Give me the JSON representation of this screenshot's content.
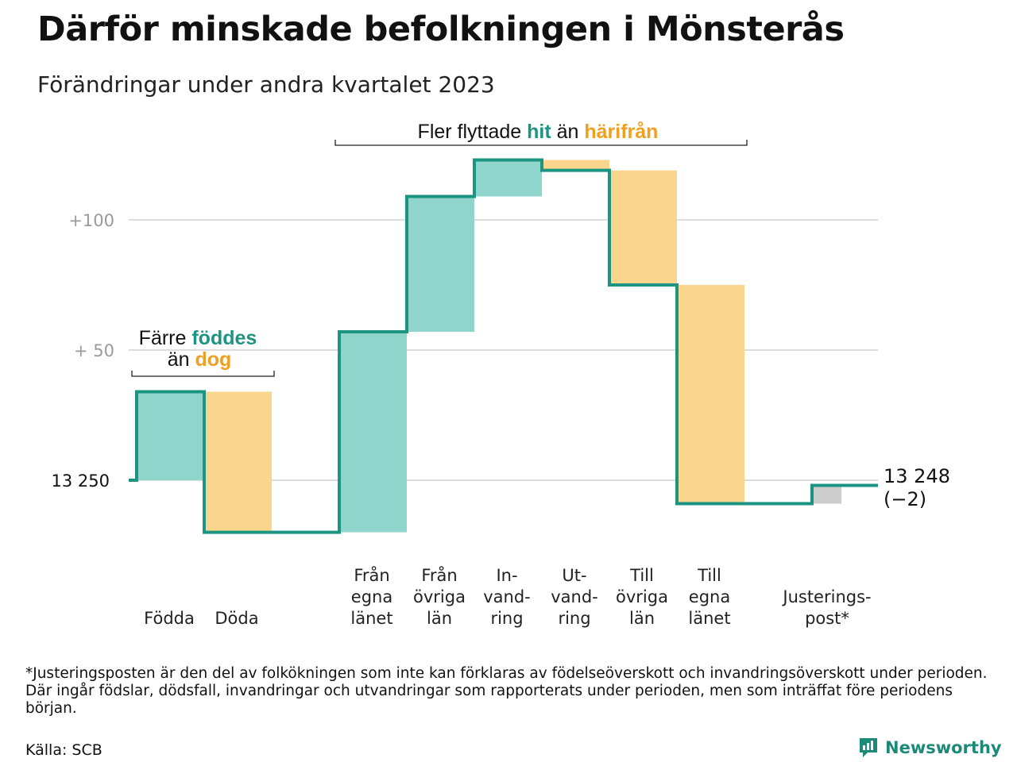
{
  "header": {
    "title": "Därför minskade befolkningen i Mönsterås",
    "subtitle": "Förändringar under andra kvartalet 2023"
  },
  "colors": {
    "increase": "#8fd5cb",
    "decrease": "#fad58d",
    "adjustment": "#cccccc",
    "line": "#1b9482",
    "hit": "#1b9482",
    "harifran": "#f0a020",
    "grid": "#dddddd"
  },
  "annotations": {
    "births_deaths": {
      "line1_pre": "Färre ",
      "line1_hl": "föddes",
      "line2_pre": "än ",
      "line2_hl": "dog"
    },
    "moves": {
      "pre": "Fler flyttade ",
      "hl1": "hit",
      "mid": " än ",
      "hl2": "härifrån"
    }
  },
  "chart_data": {
    "type": "waterfall",
    "title": "Därför minskade befolkningen i Mönsterås",
    "subtitle": "Förändringar under andra kvartalet 2023",
    "base": 13250,
    "y_tick_labels": [
      "13  250",
      "+  50",
      "+100"
    ],
    "y_tick_values": [
      13250,
      13300,
      13350
    ],
    "ylim": [
      13225,
      13380
    ],
    "grid": true,
    "steps": [
      {
        "label": "Födda",
        "label_lines": [
          "Födda"
        ],
        "value": 34,
        "kind": "increase"
      },
      {
        "label": "Döda",
        "label_lines": [
          "Döda"
        ],
        "value": -54,
        "kind": "decrease"
      },
      {
        "label": "Från egna länet",
        "label_lines": [
          "Från",
          "egna",
          "länet"
        ],
        "value": 77,
        "kind": "increase"
      },
      {
        "label": "Från övriga län",
        "label_lines": [
          "Från",
          "övriga",
          "län"
        ],
        "value": 52,
        "kind": "increase"
      },
      {
        "label": "In-vandring",
        "label_lines": [
          "In-",
          "vand-",
          "ring"
        ],
        "value": 14,
        "kind": "increase"
      },
      {
        "label": "Ut-vandring",
        "label_lines": [
          "Ut-",
          "vand-",
          "ring"
        ],
        "value": -4,
        "kind": "decrease"
      },
      {
        "label": "Till övriga län",
        "label_lines": [
          "Till",
          "övriga",
          "län"
        ],
        "value": -44,
        "kind": "decrease"
      },
      {
        "label": "Till egna länet",
        "label_lines": [
          "Till",
          "egna",
          "länet"
        ],
        "value": -84,
        "kind": "decrease"
      },
      {
        "label": "Justeringspost*",
        "label_lines": [
          "Justerings-",
          "post*"
        ],
        "value": 7,
        "kind": "adjustment"
      }
    ],
    "end_value_label": "13 248",
    "end_change_label": "(−2)"
  },
  "footer": {
    "footnote": "*Justeringsposten är den del av folkökningen som inte kan förklaras av födelseöverskott och invandringsöverskott under perioden. Där ingår födslar, dödsfall, invandringar och utvandringar som rapporterats under perioden, men som inträffat före periodens början.",
    "source": "Källa: SCB",
    "brand": "Newsworthy"
  }
}
